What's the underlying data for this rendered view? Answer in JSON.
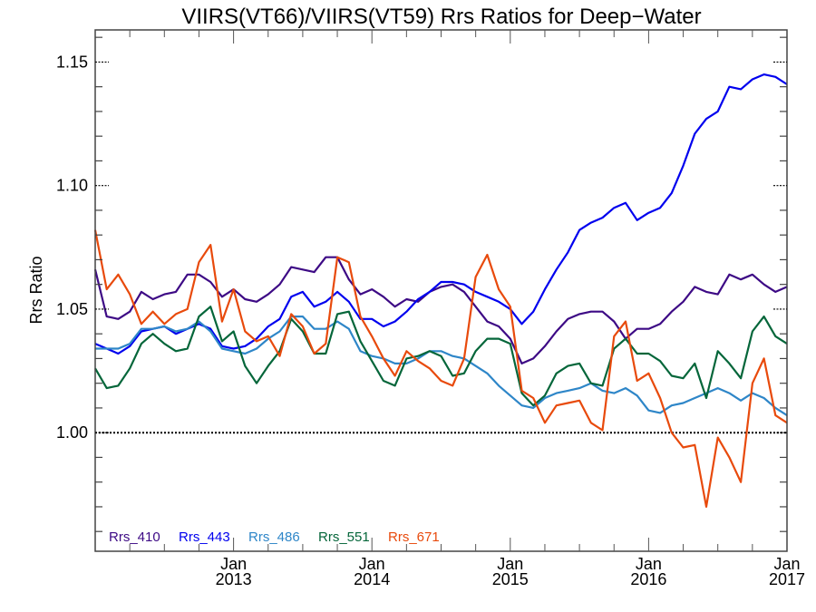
{
  "chart_data": {
    "type": "line",
    "title": "VIIRS(VT66)/VIIRS(VT59)  Rrs Ratios for Deep−Water",
    "xlabel": "",
    "ylabel": "Rrs Ratio",
    "x_start": "2012-01",
    "x_step": "monthly",
    "xlim": [
      "Jan 2012",
      "Jan 2017"
    ],
    "ylim": [
      0.952,
      1.163
    ],
    "y_major_ticks": [
      1.0,
      1.05,
      1.1,
      1.15
    ],
    "y_tick_labels": [
      "1.00",
      "1.05",
      "1.10",
      "1.15"
    ],
    "y_minor_step": 0.01,
    "x_tick_labels": [
      {
        "month": "Jan",
        "year": "2013"
      },
      {
        "month": "Jan",
        "year": "2014"
      },
      {
        "month": "Jan",
        "year": "2015"
      },
      {
        "month": "Jan",
        "year": "2016"
      },
      {
        "month": "Jan",
        "year": "2017"
      }
    ],
    "reference_line": 1.0,
    "grid": false,
    "legend_position": "bottom-left",
    "series": [
      {
        "name": "Rrs_410",
        "color": "#3d0a85",
        "values": [
          1.066,
          1.047,
          1.046,
          1.049,
          1.057,
          1.054,
          1.056,
          1.057,
          1.064,
          1.064,
          1.061,
          1.055,
          1.058,
          1.054,
          1.053,
          1.056,
          1.06,
          1.067,
          1.066,
          1.065,
          1.071,
          1.071,
          1.062,
          1.056,
          1.058,
          1.055,
          1.051,
          1.054,
          1.053,
          1.057,
          1.059,
          1.06,
          1.057,
          1.051,
          1.045,
          1.043,
          1.038,
          1.028,
          1.03,
          1.035,
          1.041,
          1.046,
          1.048,
          1.049,
          1.049,
          1.045,
          1.038,
          1.042,
          1.042,
          1.044,
          1.049,
          1.053,
          1.059,
          1.057,
          1.056,
          1.064,
          1.062,
          1.064,
          1.06,
          1.057,
          1.059
        ]
      },
      {
        "name": "Rrs_443",
        "color": "#0000ee",
        "values": [
          1.036,
          1.034,
          1.032,
          1.035,
          1.041,
          1.042,
          1.043,
          1.04,
          1.042,
          1.044,
          1.042,
          1.035,
          1.034,
          1.035,
          1.038,
          1.043,
          1.046,
          1.055,
          1.057,
          1.051,
          1.053,
          1.057,
          1.053,
          1.046,
          1.046,
          1.043,
          1.045,
          1.049,
          1.054,
          1.057,
          1.061,
          1.061,
          1.06,
          1.057,
          1.055,
          1.053,
          1.05,
          1.044,
          1.049,
          1.058,
          1.066,
          1.073,
          1.082,
          1.085,
          1.087,
          1.091,
          1.093,
          1.086,
          1.089,
          1.091,
          1.097,
          1.108,
          1.121,
          1.127,
          1.13,
          1.14,
          1.139,
          1.143,
          1.145,
          1.144,
          1.141
        ]
      },
      {
        "name": "Rrs_486",
        "color": "#2e86c8",
        "values": [
          1.034,
          1.034,
          1.034,
          1.036,
          1.042,
          1.042,
          1.043,
          1.041,
          1.042,
          1.045,
          1.041,
          1.034,
          1.033,
          1.032,
          1.034,
          1.038,
          1.041,
          1.047,
          1.047,
          1.042,
          1.042,
          1.045,
          1.042,
          1.033,
          1.031,
          1.03,
          1.028,
          1.028,
          1.03,
          1.033,
          1.033,
          1.031,
          1.03,
          1.027,
          1.024,
          1.019,
          1.015,
          1.011,
          1.01,
          1.014,
          1.016,
          1.017,
          1.018,
          1.02,
          1.017,
          1.016,
          1.018,
          1.015,
          1.009,
          1.008,
          1.011,
          1.012,
          1.014,
          1.016,
          1.018,
          1.016,
          1.013,
          1.016,
          1.014,
          1.01,
          1.007
        ]
      },
      {
        "name": "Rrs_551",
        "color": "#05663a",
        "values": [
          1.026,
          1.018,
          1.019,
          1.026,
          1.036,
          1.04,
          1.036,
          1.033,
          1.034,
          1.047,
          1.051,
          1.037,
          1.041,
          1.027,
          1.02,
          1.027,
          1.033,
          1.046,
          1.041,
          1.032,
          1.032,
          1.048,
          1.049,
          1.037,
          1.029,
          1.021,
          1.019,
          1.03,
          1.031,
          1.033,
          1.031,
          1.023,
          1.024,
          1.033,
          1.038,
          1.038,
          1.036,
          1.016,
          1.011,
          1.015,
          1.024,
          1.027,
          1.028,
          1.02,
          1.019,
          1.034,
          1.038,
          1.032,
          1.032,
          1.029,
          1.023,
          1.022,
          1.028,
          1.014,
          1.033,
          1.028,
          1.022,
          1.041,
          1.047,
          1.039,
          1.036
        ]
      },
      {
        "name": "Rrs_671",
        "color": "#e84a0c",
        "values": [
          1.082,
          1.058,
          1.064,
          1.056,
          1.044,
          1.049,
          1.044,
          1.048,
          1.05,
          1.069,
          1.076,
          1.045,
          1.058,
          1.041,
          1.037,
          1.039,
          1.031,
          1.048,
          1.043,
          1.032,
          1.036,
          1.071,
          1.069,
          1.047,
          1.039,
          1.03,
          1.023,
          1.033,
          1.029,
          1.026,
          1.021,
          1.019,
          1.03,
          1.063,
          1.072,
          1.058,
          1.051,
          1.017,
          1.014,
          1.004,
          1.011,
          1.012,
          1.013,
          1.004,
          1.001,
          1.039,
          1.045,
          1.021,
          1.024,
          1.014,
          1.0,
          0.994,
          0.995,
          0.97,
          0.998,
          0.99,
          0.98,
          1.02,
          1.03,
          1.007,
          1.004
        ]
      }
    ]
  }
}
